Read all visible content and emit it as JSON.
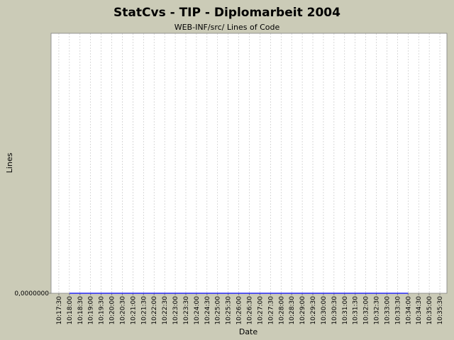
{
  "chart_data": {
    "type": "line",
    "title": "StatCvs - TIP - Diplomarbeit 2004",
    "subtitle": "WEB-INF/src/ Lines of Code",
    "x_label": "Date",
    "y_label": "Lines",
    "x": [
      "10:18:00",
      "10:34:00"
    ],
    "series": [
      {
        "color": "#0000ff",
        "values": [
          0,
          0
        ]
      }
    ],
    "xlim": [
      "10:17:08",
      "10:35:50"
    ],
    "xticks": [
      "10:17:30",
      "10:18:00",
      "10:18:30",
      "10:19:00",
      "10:19:30",
      "10:20:00",
      "10:20:30",
      "10:21:00",
      "10:21:30",
      "10:22:00",
      "10:22:30",
      "10:23:00",
      "10:23:30",
      "10:24:00",
      "10:24:30",
      "10:25:00",
      "10:25:30",
      "10:26:00",
      "10:26:30",
      "10:27:00",
      "10:27:30",
      "10:28:00",
      "10:28:30",
      "10:29:00",
      "10:29:30",
      "10:30:00",
      "10:30:30",
      "10:31:00",
      "10:31:30",
      "10:32:00",
      "10:32:30",
      "10:33:00",
      "10:33:30",
      "10:34:00",
      "10:34:30",
      "10:35:00",
      "10:35:30"
    ],
    "ylim": [
      0,
      1
    ],
    "yticks": [
      {
        "value": 0,
        "label": "0,0000000"
      }
    ],
    "grid": true
  }
}
